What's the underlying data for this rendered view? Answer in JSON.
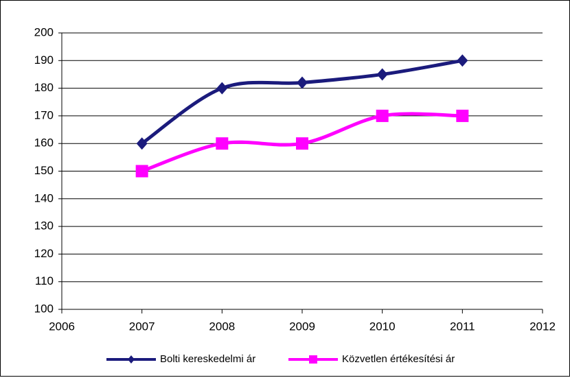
{
  "chart_data": {
    "type": "line",
    "x": [
      2007,
      2008,
      2009,
      2010,
      2011
    ],
    "series": [
      {
        "name": "Bolti kereskedelmi ár",
        "color": "#1b1b7c",
        "marker": "diamond",
        "values": [
          160,
          180,
          182,
          185,
          190
        ]
      },
      {
        "name": "Közvetlen értékesítési ár",
        "color": "#ff00ff",
        "marker": "square",
        "values": [
          150,
          160,
          160,
          170,
          170
        ]
      }
    ],
    "xlim": [
      2006,
      2012
    ],
    "xticks": [
      2006,
      2007,
      2008,
      2009,
      2010,
      2011,
      2012
    ],
    "ylim": [
      100,
      200
    ],
    "yticks": [
      100,
      110,
      120,
      130,
      140,
      150,
      160,
      170,
      180,
      190,
      200
    ],
    "grid": true,
    "smooth": true,
    "legend": "bottom"
  }
}
